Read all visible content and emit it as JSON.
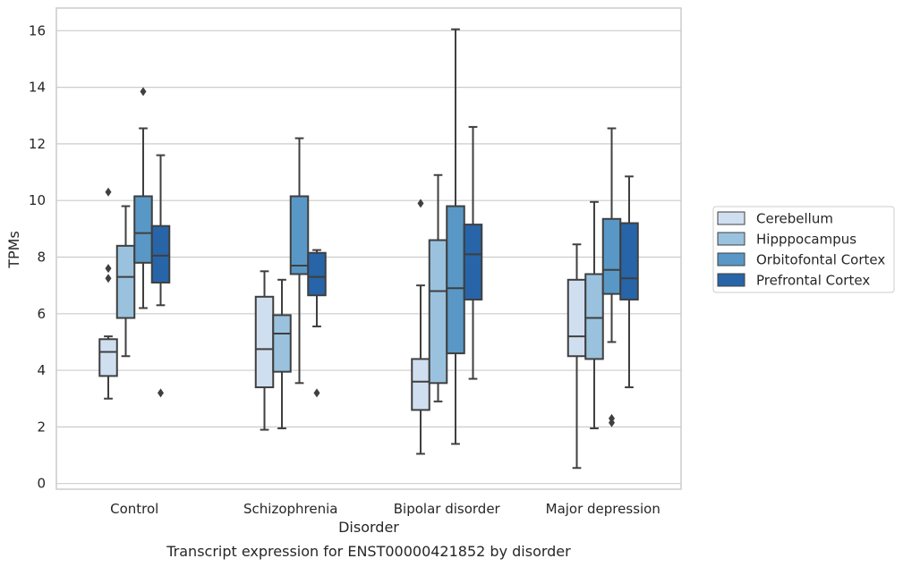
{
  "chart_data": {
    "type": "box",
    "caption": "Transcript expression for ENST00000421852 by disorder",
    "xlabel": "Disorder",
    "ylabel": "TPMs",
    "ylim": [
      -0.2,
      16.8
    ],
    "yticks": [
      0,
      2,
      4,
      6,
      8,
      10,
      12,
      14,
      16
    ],
    "grid": true,
    "legend_position": "right",
    "categories": [
      "Control",
      "Schizophrenia",
      "Bipolar disorder",
      "Major depression"
    ],
    "series": [
      {
        "name": "Cerebellum",
        "color": "#d0dff0",
        "boxes": [
          {
            "whislo": 3.0,
            "q1": 3.8,
            "med": 4.65,
            "q3": 5.1,
            "whishi": 5.2,
            "fliers": [
              7.6,
              7.25,
              10.3
            ]
          },
          {
            "whislo": 1.9,
            "q1": 3.4,
            "med": 4.75,
            "q3": 6.6,
            "whishi": 7.5,
            "fliers": []
          },
          {
            "whislo": 1.05,
            "q1": 2.6,
            "med": 3.6,
            "q3": 4.4,
            "whishi": 7.0,
            "fliers": [
              9.9
            ]
          },
          {
            "whislo": 0.55,
            "q1": 4.5,
            "med": 5.2,
            "q3": 7.2,
            "whishi": 8.45,
            "fliers": []
          }
        ]
      },
      {
        "name": "Hipppocampus",
        "color": "#9ac2de",
        "boxes": [
          {
            "whislo": 4.5,
            "q1": 5.85,
            "med": 7.3,
            "q3": 8.4,
            "whishi": 9.8,
            "fliers": []
          },
          {
            "whislo": 1.95,
            "q1": 3.95,
            "med": 5.3,
            "q3": 5.95,
            "whishi": 7.2,
            "fliers": []
          },
          {
            "whislo": 2.9,
            "q1": 3.55,
            "med": 6.8,
            "q3": 8.6,
            "whishi": 10.9,
            "fliers": []
          },
          {
            "whislo": 1.95,
            "q1": 4.4,
            "med": 5.85,
            "q3": 7.4,
            "whishi": 9.95,
            "fliers": []
          }
        ]
      },
      {
        "name": "Orbitofontal Cortex",
        "color": "#5998c6",
        "boxes": [
          {
            "whislo": 6.2,
            "q1": 7.8,
            "med": 8.85,
            "q3": 10.15,
            "whishi": 12.55,
            "fliers": [
              13.85
            ]
          },
          {
            "whislo": 3.55,
            "q1": 7.4,
            "med": 7.7,
            "q3": 10.15,
            "whishi": 12.2,
            "fliers": []
          },
          {
            "whislo": 1.4,
            "q1": 4.6,
            "med": 6.9,
            "q3": 9.8,
            "whishi": 16.05,
            "fliers": []
          },
          {
            "whislo": 5.0,
            "q1": 6.7,
            "med": 7.55,
            "q3": 9.35,
            "whishi": 12.55,
            "fliers": [
              2.3,
              2.15
            ]
          }
        ]
      },
      {
        "name": "Prefrontal Cortex",
        "color": "#2765a8",
        "boxes": [
          {
            "whislo": 6.3,
            "q1": 7.1,
            "med": 8.05,
            "q3": 9.1,
            "whishi": 11.6,
            "fliers": [
              3.2
            ]
          },
          {
            "whislo": 5.55,
            "q1": 6.65,
            "med": 7.3,
            "q3": 8.15,
            "whishi": 8.25,
            "fliers": [
              3.2
            ]
          },
          {
            "whislo": 3.7,
            "q1": 6.5,
            "med": 8.1,
            "q3": 9.15,
            "whishi": 12.6,
            "fliers": []
          },
          {
            "whislo": 3.4,
            "q1": 6.5,
            "med": 7.25,
            "q3": 9.2,
            "whishi": 10.85,
            "fliers": []
          }
        ]
      }
    ]
  }
}
